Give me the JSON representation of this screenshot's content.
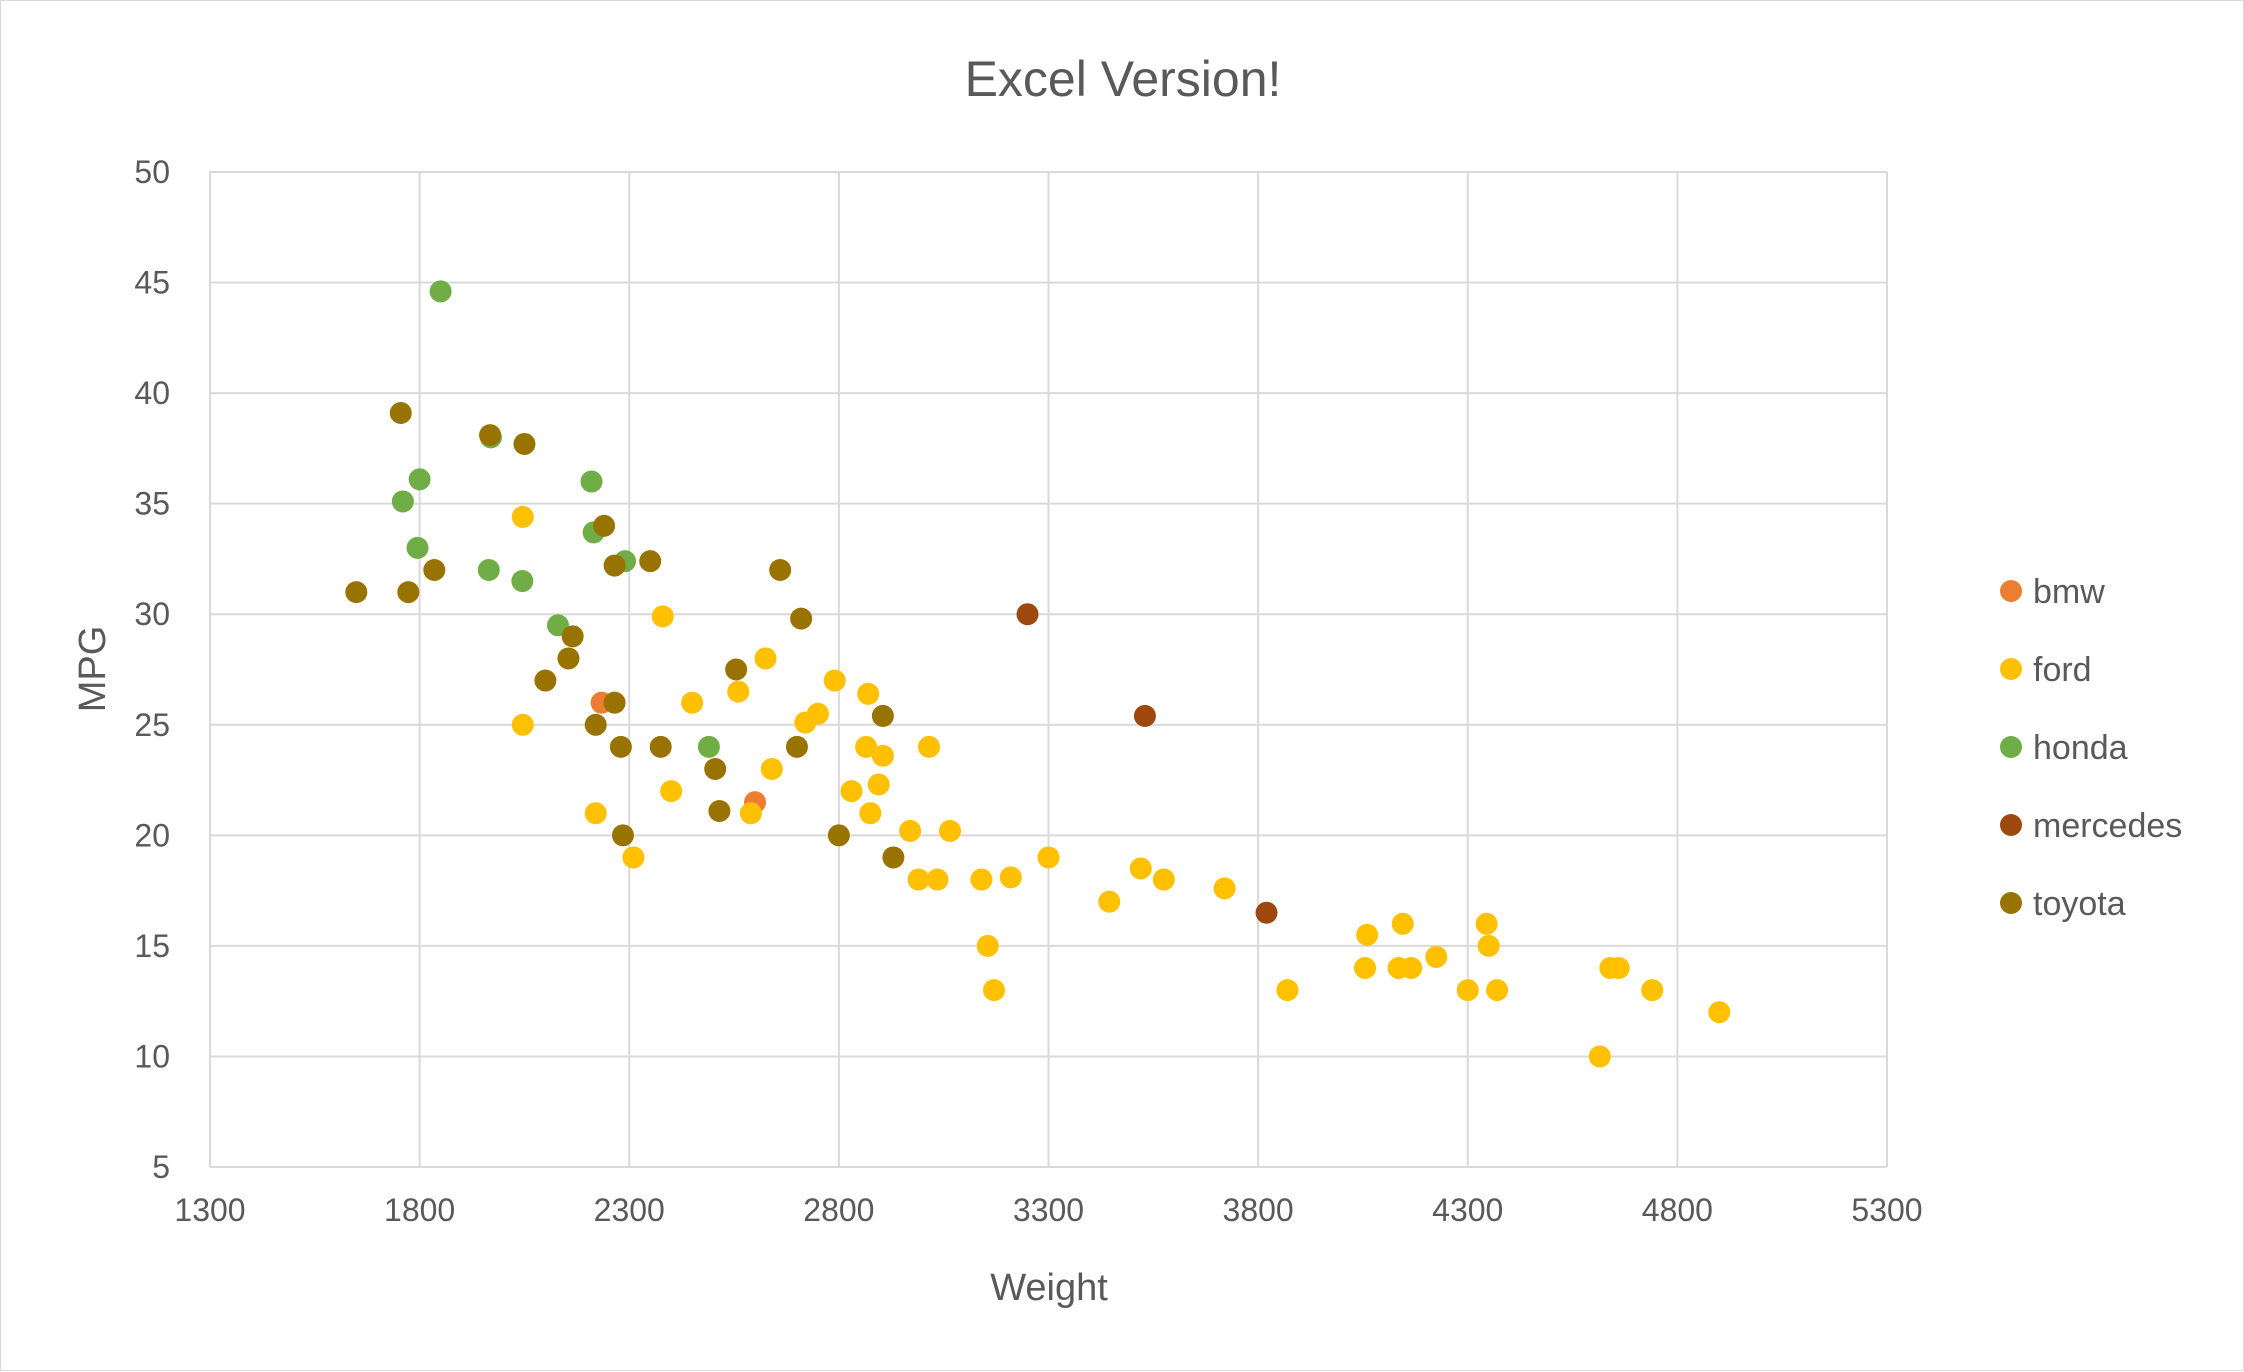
{
  "chart_data": {
    "type": "scatter",
    "title": "Excel Version!",
    "xlabel": "Weight",
    "ylabel": "MPG",
    "xlim": [
      1300,
      5300
    ],
    "ylim": [
      5,
      50
    ],
    "xticks": [
      1300,
      1800,
      2300,
      2800,
      3300,
      3800,
      4300,
      4800,
      5300
    ],
    "yticks": [
      5,
      10,
      15,
      20,
      25,
      30,
      35,
      40,
      45,
      50
    ],
    "grid": true,
    "legend_position": "right",
    "series": [
      {
        "name": "bmw",
        "color": "#ED7D31",
        "points": [
          [
            2234,
            26
          ],
          [
            2600,
            21.5
          ]
        ]
      },
      {
        "name": "ford",
        "color": "#FFC000",
        "points": [
          [
            2046,
            25
          ],
          [
            2046,
            34.4
          ],
          [
            2220,
            21
          ],
          [
            2310,
            19
          ],
          [
            2380,
            29.9
          ],
          [
            2400,
            22
          ],
          [
            2450,
            26
          ],
          [
            2560,
            26.5
          ],
          [
            2590,
            21
          ],
          [
            2625,
            28
          ],
          [
            2640,
            23
          ],
          [
            2720,
            25.1
          ],
          [
            2750,
            25.5
          ],
          [
            2790,
            27
          ],
          [
            2830,
            22
          ],
          [
            2865,
            24
          ],
          [
            2870,
            26.4
          ],
          [
            2875,
            21
          ],
          [
            2895,
            22.3
          ],
          [
            2905,
            23.6
          ],
          [
            2970,
            20.2
          ],
          [
            2990,
            18
          ],
          [
            3015,
            24
          ],
          [
            3035,
            18
          ],
          [
            3065,
            20.2
          ],
          [
            3140,
            18
          ],
          [
            3155,
            15
          ],
          [
            3170,
            13
          ],
          [
            3210,
            18.1
          ],
          [
            3300,
            19
          ],
          [
            3445,
            17
          ],
          [
            3520,
            18.5
          ],
          [
            3575,
            18
          ],
          [
            3720,
            17.6
          ],
          [
            3870,
            13
          ],
          [
            4055,
            14
          ],
          [
            4060,
            15.5
          ],
          [
            4135,
            14
          ],
          [
            4145,
            16
          ],
          [
            4165,
            14
          ],
          [
            4225,
            14.5
          ],
          [
            4300,
            13
          ],
          [
            4345,
            16
          ],
          [
            4350,
            15
          ],
          [
            4370,
            13
          ],
          [
            4615,
            10
          ],
          [
            4640,
            14
          ],
          [
            4660,
            14
          ],
          [
            4740,
            13
          ],
          [
            4900,
            12
          ]
        ]
      },
      {
        "name": "honda",
        "color": "#70AD47",
        "points": [
          [
            1760,
            35.1
          ],
          [
            1795,
            33
          ],
          [
            1800,
            36.1
          ],
          [
            1850,
            44.6
          ],
          [
            1965,
            32
          ],
          [
            1970,
            38
          ],
          [
            2045,
            31.5
          ],
          [
            2130,
            29.5
          ],
          [
            2210,
            36
          ],
          [
            2215,
            33.7
          ],
          [
            2290,
            32.4
          ],
          [
            2490,
            24
          ]
        ]
      },
      {
        "name": "mercedes",
        "color": "#9E480E",
        "points": [
          [
            3250,
            30
          ],
          [
            3530,
            25.4
          ],
          [
            3820,
            16.5
          ]
        ]
      },
      {
        "name": "toyota",
        "color": "#997300",
        "points": [
          [
            1649,
            31
          ],
          [
            1755,
            39.1
          ],
          [
            1773,
            31
          ],
          [
            1835,
            32
          ],
          [
            1968,
            38.1
          ],
          [
            2050,
            37.7
          ],
          [
            2100,
            27
          ],
          [
            2155,
            28
          ],
          [
            2165,
            29
          ],
          [
            2220,
            25
          ],
          [
            2240,
            34
          ],
          [
            2265,
            32.2
          ],
          [
            2265,
            26
          ],
          [
            2280,
            24
          ],
          [
            2285,
            20
          ],
          [
            2350,
            32.4
          ],
          [
            2375,
            24
          ],
          [
            2505,
            23
          ],
          [
            2515,
            21.1
          ],
          [
            2555,
            27.5
          ],
          [
            2660,
            32
          ],
          [
            2700,
            24
          ],
          [
            2710,
            29.8
          ],
          [
            2800,
            20
          ],
          [
            2905,
            25.4
          ],
          [
            2930,
            19
          ]
        ]
      }
    ]
  }
}
